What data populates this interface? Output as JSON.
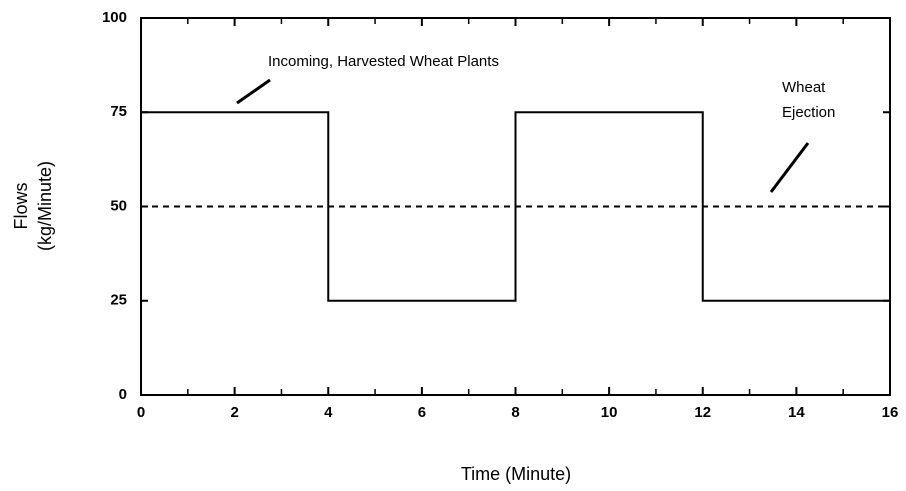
{
  "chart_data": {
    "type": "line",
    "xlabel": "Time (Minute)",
    "ylabel": [
      "Flows",
      "(kg/Minute)"
    ],
    "xlim": [
      0,
      16
    ],
    "ylim": [
      0,
      100
    ],
    "xticks": [
      0,
      2,
      4,
      6,
      8,
      10,
      12,
      14,
      16
    ],
    "xminor_ticks": [
      1,
      3,
      5,
      7,
      9,
      11,
      13,
      15
    ],
    "yticks": [
      0,
      25,
      50,
      75,
      100
    ],
    "series": [
      {
        "color": "#000000",
        "dashed": false,
        "x": [
          0,
          4,
          4,
          8,
          8,
          12,
          12,
          16
        ],
        "values": [
          75,
          75,
          25,
          25,
          75,
          75,
          25,
          25
        ]
      },
      {
        "color": "#000000",
        "dashed": true,
        "x": [
          0,
          16
        ],
        "values": [
          50,
          50
        ]
      }
    ],
    "annotations": [
      [
        "Incoming, Harvested Wheat Plants"
      ],
      [
        "Wheat",
        "Ejection"
      ]
    ]
  }
}
